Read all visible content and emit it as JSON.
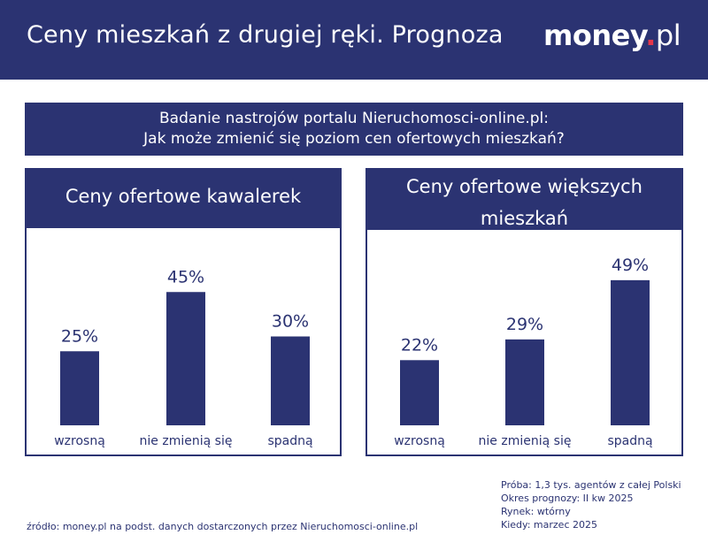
{
  "header": {
    "title": "Ceny mieszkań z drugiej ręki. Prognoza",
    "logo_main": "money",
    "logo_dot": ".",
    "logo_tld": "pl"
  },
  "question": {
    "line1": "Badanie nastrojów portalu Nieruchomosci-online.pl:",
    "line2": "Jak może zmienić się poziom cen ofertowych mieszkań?"
  },
  "chart_data": [
    {
      "type": "bar",
      "title": "Ceny ofertowe kawalerek",
      "categories": [
        "wzrosną",
        "nie zmienią się",
        "spadną"
      ],
      "values": [
        25,
        45,
        30
      ],
      "value_labels": [
        "25%",
        "45%",
        "30%"
      ],
      "unit": "%",
      "ylim": [
        0,
        100
      ],
      "xlabel": "",
      "ylabel": "",
      "grid": false
    },
    {
      "type": "bar",
      "title_line1": "Ceny ofertowe większych",
      "title_line2": "mieszkań",
      "categories": [
        "wzrosną",
        "nie zmienią się",
        "spadną"
      ],
      "values": [
        22,
        29,
        49
      ],
      "value_labels": [
        "22%",
        "29%",
        "49%"
      ],
      "unit": "%",
      "ylim": [
        0,
        100
      ],
      "xlabel": "",
      "ylabel": "",
      "grid": false
    }
  ],
  "footer": {
    "source": "źródło: money.pl na podst. danych dostarczonych przez Nieruchomosci-online.pl",
    "meta": [
      "Próba: 1,3 tys. agentów z całej Polski",
      "Okres prognozy: II kw 2025",
      "Rynek: wtórny",
      "Kiedy: marzec 2025"
    ]
  },
  "colors": {
    "navy": "#2b3372",
    "accent": "#e4364a",
    "background": "#ffffff"
  }
}
